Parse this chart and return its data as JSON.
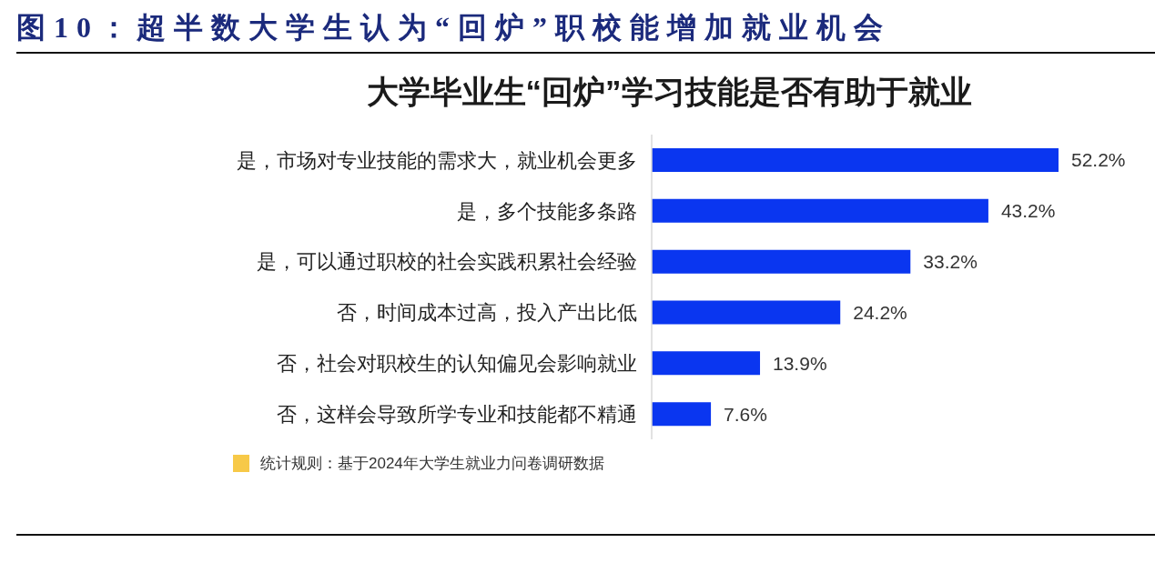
{
  "chart_data": {
    "type": "bar",
    "orientation": "horizontal",
    "title": "图10：超半数大学生认为“回炉”职校能增加就业机会",
    "subtitle": "大学毕业生“回炉”学习技能是否有助于就业",
    "categories": [
      "是，市场对专业技能的需求大，就业机会更多",
      "是，多个技能多条路",
      "是，可以通过职校的社会实践积累社会经验",
      "否，时间成本过高，投入产出比低",
      "否，社会对职校生的认知偏见会影响就业",
      "否，这样会导致所学专业和技能都不精通"
    ],
    "values": [
      52.2,
      43.2,
      33.2,
      24.2,
      13.9,
      7.6
    ],
    "color": "#0a36f0",
    "value_labels": [
      "52.2%",
      "43.2%",
      "33.2%",
      "24.2%",
      "13.9%",
      "7.6%"
    ],
    "annotations": [
      "统计规则：基于2024年大学生就业力问卷调研数据"
    ]
  }
}
